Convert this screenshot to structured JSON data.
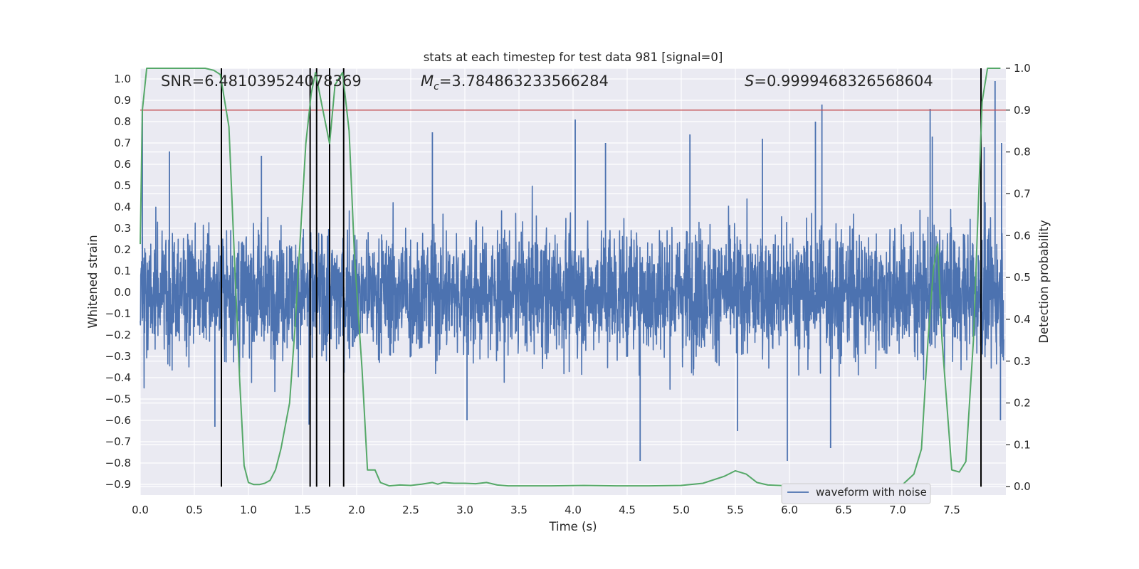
{
  "chart_data": {
    "type": "line",
    "title": "stats at each timestep for test data 981 [signal=0]",
    "xlabel": "Time (s)",
    "ylabel": "Whitened strain",
    "y2label": "Detection probability",
    "xlim": [
      0.0,
      8.0
    ],
    "ylim": [
      -0.95,
      1.05
    ],
    "y2lim": [
      -0.02,
      1.0
    ],
    "xticks": [
      "0.0",
      "0.5",
      "1.0",
      "1.5",
      "2.0",
      "2.5",
      "3.0",
      "3.5",
      "4.0",
      "4.5",
      "5.0",
      "5.5",
      "6.0",
      "6.5",
      "7.0",
      "7.5"
    ],
    "yticks": [
      "1.0",
      "0.9",
      "0.8",
      "0.7",
      "0.6",
      "0.5",
      "0.4",
      "0.3",
      "0.2",
      "0.1",
      "0.0",
      "−0.1",
      "−0.2",
      "−0.3",
      "−0.4",
      "−0.5",
      "−0.6",
      "−0.7",
      "−0.8",
      "−0.9"
    ],
    "y2ticks": [
      "1.0",
      "0.9",
      "0.8",
      "0.7",
      "0.6",
      "0.5",
      "0.4",
      "0.3",
      "0.2",
      "0.1",
      "0.0"
    ],
    "grid": true,
    "annotations": {
      "snr": "SNR=6.481039524078369",
      "mc_symbol": "M",
      "mc_sub": "c",
      "mc_value": "=3.784863233566284",
      "s_symbol": "S",
      "s_value": "=0.9999468326568604"
    },
    "series": [
      {
        "name": "waveform with noise",
        "color": "#4c72b0",
        "kind": "noise",
        "typical_abs": 0.32,
        "spike_peaks": [
          {
            "x": 0.02,
            "y": 0.86
          },
          {
            "x": 0.75,
            "y": 0.7
          },
          {
            "x": 0.27,
            "y": 0.66
          },
          {
            "x": 1.12,
            "y": 0.64
          },
          {
            "x": 2.7,
            "y": 0.75
          },
          {
            "x": 4.02,
            "y": 0.81
          },
          {
            "x": 4.3,
            "y": 0.7
          },
          {
            "x": 5.75,
            "y": 0.72
          },
          {
            "x": 5.08,
            "y": 0.74
          },
          {
            "x": 6.24,
            "y": 0.8
          },
          {
            "x": 6.3,
            "y": 0.88
          },
          {
            "x": 7.3,
            "y": 0.86
          },
          {
            "x": 7.32,
            "y": 0.73
          },
          {
            "x": 7.8,
            "y": 0.68
          },
          {
            "x": 7.9,
            "y": 0.99
          },
          {
            "x": 7.96,
            "y": 0.7
          },
          {
            "x": 4.62,
            "y": -0.79
          },
          {
            "x": 5.98,
            "y": -0.79
          },
          {
            "x": 6.38,
            "y": -0.73
          },
          {
            "x": 0.69,
            "y": -0.63
          },
          {
            "x": 1.56,
            "y": -0.62
          },
          {
            "x": 5.52,
            "y": -0.65
          },
          {
            "x": 3.02,
            "y": -0.6
          },
          {
            "x": 7.95,
            "y": -0.6
          }
        ]
      },
      {
        "name": "",
        "color": "#55a868",
        "kind": "probability",
        "x": [
          0.0,
          0.02,
          0.06,
          0.12,
          0.2,
          0.3,
          0.4,
          0.5,
          0.6,
          0.68,
          0.74,
          0.82,
          0.87,
          0.92,
          0.96,
          1.0,
          1.05,
          1.1,
          1.15,
          1.2,
          1.25,
          1.3,
          1.38,
          1.43,
          1.48,
          1.53,
          1.58,
          1.62,
          1.68,
          1.75,
          1.8,
          1.87,
          1.93,
          1.98,
          2.05,
          2.1,
          2.17,
          2.22,
          2.3,
          2.4,
          2.5,
          2.6,
          2.7,
          2.75,
          2.8,
          2.9,
          3.0,
          3.1,
          3.2,
          3.3,
          3.4,
          3.5,
          3.8,
          4.1,
          4.4,
          4.7,
          5.0,
          5.2,
          5.4,
          5.5,
          5.6,
          5.7,
          5.8,
          6.0,
          6.3,
          6.6,
          6.9,
          7.05,
          7.15,
          7.22,
          7.28,
          7.33,
          7.37,
          7.41,
          7.5,
          7.57,
          7.63,
          7.7,
          7.78,
          7.83,
          7.9,
          7.95
        ],
        "y": [
          0.58,
          0.9,
          1.0,
          1.0,
          1.0,
          1.0,
          1.0,
          1.0,
          1.0,
          0.995,
          0.985,
          0.86,
          0.55,
          0.25,
          0.05,
          0.01,
          0.005,
          0.005,
          0.008,
          0.015,
          0.04,
          0.09,
          0.2,
          0.38,
          0.6,
          0.82,
          0.94,
          0.99,
          0.91,
          0.82,
          0.96,
          0.99,
          0.85,
          0.55,
          0.28,
          0.04,
          0.04,
          0.01,
          0.002,
          0.004,
          0.003,
          0.006,
          0.01,
          0.006,
          0.01,
          0.008,
          0.008,
          0.007,
          0.01,
          0.004,
          0.002,
          0.002,
          0.002,
          0.003,
          0.002,
          0.002,
          0.003,
          0.008,
          0.025,
          0.038,
          0.03,
          0.01,
          0.004,
          0.002,
          0.002,
          0.002,
          0.002,
          0.006,
          0.03,
          0.09,
          0.35,
          0.52,
          0.58,
          0.35,
          0.04,
          0.035,
          0.06,
          0.35,
          0.92,
          1.0,
          1.0,
          1.0
        ]
      }
    ],
    "threshold": {
      "y2": 0.9,
      "color": "#c44e52"
    },
    "vlines": {
      "x": [
        0.75,
        1.57,
        1.63,
        1.75,
        1.88,
        7.77
      ],
      "y2_range": [
        0.0,
        1.0
      ],
      "color": "#000000"
    },
    "legend": {
      "placement": "lower-right",
      "label": "waveform with noise"
    }
  }
}
